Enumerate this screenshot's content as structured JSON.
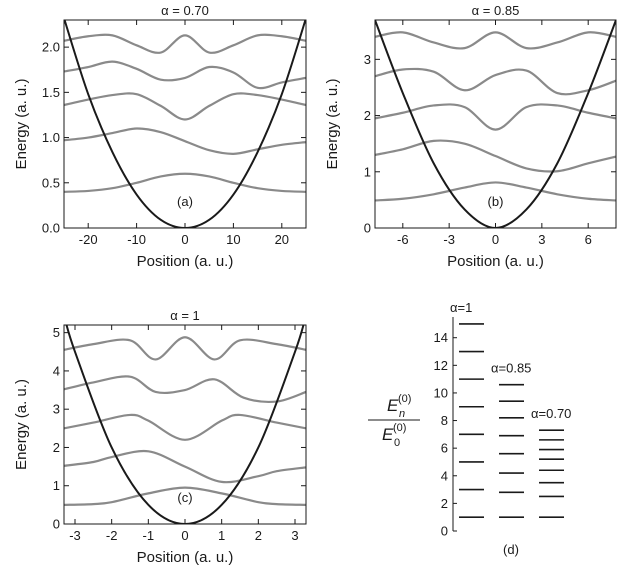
{
  "chart_data": [
    {
      "type": "line",
      "title": "α = 0.70",
      "xlabel": "Position (a. u.)",
      "ylabel": "Energy (a. u.)",
      "panel_label": "(a)",
      "xlim": [
        -25,
        25
      ],
      "ylim": [
        0,
        2.3
      ],
      "xticks": [
        -20,
        -10,
        0,
        10,
        20
      ],
      "yticks": [
        0.0,
        0.5,
        1.0,
        1.5,
        2.0
      ],
      "ytick_labels": [
        "0.0",
        "0.5",
        "1.0",
        "1.5",
        "2.0"
      ],
      "potential": {
        "color": "#1a1a1a",
        "points": [
          [
            -25,
            2.32
          ],
          [
            -20,
            1.48
          ],
          [
            -15,
            0.84
          ],
          [
            -10,
            0.37
          ],
          [
            -5,
            0.09
          ],
          [
            0,
            0.0
          ],
          [
            5,
            0.09
          ],
          [
            10,
            0.37
          ],
          [
            15,
            0.84
          ],
          [
            20,
            1.48
          ],
          [
            25,
            2.32
          ]
        ]
      },
      "wavefunctions": [
        {
          "energy": 0.4,
          "points": [
            [
              -25,
              0.4
            ],
            [
              -20,
              0.41
            ],
            [
              -15,
              0.44
            ],
            [
              -10,
              0.5
            ],
            [
              -5,
              0.57
            ],
            [
              0,
              0.6
            ],
            [
              5,
              0.57
            ],
            [
              10,
              0.5
            ],
            [
              15,
              0.44
            ],
            [
              20,
              0.41
            ],
            [
              25,
              0.4
            ]
          ]
        },
        {
          "energy": 0.96,
          "points": [
            [
              -25,
              0.97
            ],
            [
              -20,
              1.0
            ],
            [
              -15,
              1.05
            ],
            [
              -10,
              1.1
            ],
            [
              -5,
              1.06
            ],
            [
              0,
              0.96
            ],
            [
              5,
              0.86
            ],
            [
              10,
              0.82
            ],
            [
              15,
              0.87
            ],
            [
              20,
              0.92
            ],
            [
              25,
              0.95
            ]
          ]
        },
        {
          "energy": 1.35,
          "points": [
            [
              -25,
              1.36
            ],
            [
              -20,
              1.42
            ],
            [
              -15,
              1.47
            ],
            [
              -10,
              1.48
            ],
            [
              -5,
              1.35
            ],
            [
              0,
              1.2
            ],
            [
              5,
              1.35
            ],
            [
              10,
              1.48
            ],
            [
              15,
              1.47
            ],
            [
              20,
              1.42
            ],
            [
              25,
              1.36
            ]
          ]
        },
        {
          "energy": 1.66,
          "points": [
            [
              -25,
              1.73
            ],
            [
              -20,
              1.78
            ],
            [
              -15,
              1.84
            ],
            [
              -10,
              1.76
            ],
            [
              -5,
              1.64
            ],
            [
              0,
              1.66
            ],
            [
              5,
              1.78
            ],
            [
              10,
              1.72
            ],
            [
              15,
              1.55
            ],
            [
              20,
              1.61
            ],
            [
              25,
              1.66
            ]
          ]
        },
        {
          "energy": 2.03,
          "points": [
            [
              -25,
              2.07
            ],
            [
              -20,
              2.12
            ],
            [
              -15,
              2.13
            ],
            [
              -10,
              2.02
            ],
            [
              -5,
              1.94
            ],
            [
              0,
              2.13
            ],
            [
              5,
              1.94
            ],
            [
              10,
              2.02
            ],
            [
              15,
              2.13
            ],
            [
              20,
              2.12
            ],
            [
              25,
              2.07
            ]
          ]
        }
      ]
    },
    {
      "type": "line",
      "title": "α = 0.85",
      "xlabel": "Position (a. u.)",
      "ylabel": "Energy (a. u.)",
      "panel_label": "(b)",
      "xlim": [
        -7.8,
        7.8
      ],
      "ylim": [
        0,
        3.7
      ],
      "xticks": [
        -6,
        -3,
        0,
        3,
        6
      ],
      "yticks": [
        0,
        1,
        2,
        3
      ],
      "ytick_labels": [
        "0",
        "1",
        "2",
        "3"
      ],
      "potential": {
        "color": "#1a1a1a",
        "points": [
          [
            -7.8,
            3.7
          ],
          [
            -6,
            2.4
          ],
          [
            -4,
            1.15
          ],
          [
            -2,
            0.33
          ],
          [
            0,
            0.0
          ],
          [
            2,
            0.33
          ],
          [
            4,
            1.15
          ],
          [
            6,
            2.4
          ],
          [
            7.8,
            3.7
          ]
        ]
      },
      "wavefunctions": [
        {
          "energy": 0.55,
          "points": [
            [
              -7.8,
              0.49
            ],
            [
              -6,
              0.52
            ],
            [
              -4,
              0.6
            ],
            [
              -2,
              0.72
            ],
            [
              0,
              0.81
            ],
            [
              2,
              0.72
            ],
            [
              4,
              0.6
            ],
            [
              6,
              0.52
            ],
            [
              7.8,
              0.49
            ]
          ]
        },
        {
          "energy": 1.28,
          "points": [
            [
              -7.8,
              1.3
            ],
            [
              -6,
              1.4
            ],
            [
              -4,
              1.55
            ],
            [
              -2,
              1.5
            ],
            [
              0,
              1.28
            ],
            [
              2,
              1.06
            ],
            [
              4,
              1.01
            ],
            [
              6,
              1.15
            ],
            [
              7.8,
              1.27
            ]
          ]
        },
        {
          "energy": 2.05,
          "points": [
            [
              -7.8,
              1.95
            ],
            [
              -6,
              2.05
            ],
            [
              -4,
              2.18
            ],
            [
              -2,
              2.15
            ],
            [
              0,
              1.75
            ],
            [
              2,
              2.15
            ],
            [
              4,
              2.18
            ],
            [
              6,
              2.05
            ],
            [
              7.8,
              1.95
            ]
          ]
        },
        {
          "energy": 2.7,
          "points": [
            [
              -7.8,
              2.7
            ],
            [
              -6,
              2.82
            ],
            [
              -4,
              2.78
            ],
            [
              -2,
              2.45
            ],
            [
              0,
              2.72
            ],
            [
              2,
              2.8
            ],
            [
              4,
              2.4
            ],
            [
              6,
              2.45
            ],
            [
              7.8,
              2.62
            ]
          ]
        },
        {
          "energy": 3.35,
          "points": [
            [
              -7.8,
              3.4
            ],
            [
              -6,
              3.48
            ],
            [
              -4,
              3.3
            ],
            [
              -2,
              3.2
            ],
            [
              0,
              3.48
            ],
            [
              2,
              3.2
            ],
            [
              4,
              3.3
            ],
            [
              6,
              3.48
            ],
            [
              7.8,
              3.4
            ]
          ]
        }
      ]
    },
    {
      "type": "line",
      "title": "α = 1",
      "xlabel": "Position (a. u.)",
      "ylabel": "Energy (a. u.)",
      "panel_label": "(c)",
      "xlim": [
        -3.3,
        3.3
      ],
      "ylim": [
        0,
        5.2
      ],
      "xticks": [
        -3,
        -2,
        -1,
        0,
        1,
        2,
        3
      ],
      "yticks": [
        0,
        1,
        2,
        3,
        4,
        5
      ],
      "ytick_labels": [
        "0",
        "1",
        "2",
        "3",
        "4",
        "5"
      ],
      "potential": {
        "color": "#1a1a1a",
        "points": [
          [
            -3.3,
            5.45
          ],
          [
            -3,
            4.5
          ],
          [
            -2,
            2.0
          ],
          [
            -1,
            0.5
          ],
          [
            0,
            0.0
          ],
          [
            1,
            0.5
          ],
          [
            2,
            2.0
          ],
          [
            3,
            4.5
          ],
          [
            3.3,
            5.45
          ]
        ]
      },
      "wavefunctions": [
        {
          "energy": 0.5,
          "points": [
            [
              -3.3,
              0.5
            ],
            [
              -2.5,
              0.52
            ],
            [
              -2,
              0.57
            ],
            [
              -1,
              0.8
            ],
            [
              0,
              0.95
            ],
            [
              1,
              0.8
            ],
            [
              2,
              0.57
            ],
            [
              2.5,
              0.52
            ],
            [
              3.3,
              0.5
            ]
          ]
        },
        {
          "energy": 1.5,
          "points": [
            [
              -3.3,
              1.52
            ],
            [
              -2.5,
              1.62
            ],
            [
              -2,
              1.75
            ],
            [
              -1,
              1.9
            ],
            [
              0,
              1.5
            ],
            [
              1,
              1.1
            ],
            [
              2,
              1.25
            ],
            [
              2.5,
              1.38
            ],
            [
              3.3,
              1.48
            ]
          ]
        },
        {
          "energy": 2.5,
          "points": [
            [
              -3.3,
              2.5
            ],
            [
              -2.5,
              2.65
            ],
            [
              -1.5,
              2.85
            ],
            [
              -1,
              2.7
            ],
            [
              0,
              2.2
            ],
            [
              1,
              2.7
            ],
            [
              1.5,
              2.85
            ],
            [
              2.5,
              2.65
            ],
            [
              3.3,
              2.5
            ]
          ]
        },
        {
          "energy": 3.5,
          "points": [
            [
              -3.3,
              3.52
            ],
            [
              -2.5,
              3.7
            ],
            [
              -1.5,
              3.85
            ],
            [
              -0.8,
              3.45
            ],
            [
              0,
              3.5
            ],
            [
              0.8,
              3.78
            ],
            [
              1.6,
              3.3
            ],
            [
              2.5,
              3.2
            ],
            [
              3.3,
              3.45
            ]
          ]
        },
        {
          "energy": 4.5,
          "points": [
            [
              -3.3,
              4.55
            ],
            [
              -2.5,
              4.7
            ],
            [
              -1.5,
              4.8
            ],
            [
              -0.8,
              4.3
            ],
            [
              0,
              4.88
            ],
            [
              0.8,
              4.3
            ],
            [
              1.5,
              4.8
            ],
            [
              2.5,
              4.7
            ],
            [
              3.3,
              4.55
            ]
          ]
        }
      ]
    },
    {
      "type": "bar",
      "title": "",
      "panel_label": "(d)",
      "ylabel_numerator": "E",
      "ylabel_subscript": "n",
      "ylabel_superscript": "(0)",
      "ylabel_denominator": "E",
      "ylabel_den_subscript": "0",
      "ylabel_den_superscript": "(0)",
      "ylim": [
        0,
        15.5
      ],
      "yticks": [
        0,
        2,
        4,
        6,
        8,
        10,
        12,
        14
      ],
      "ytick_labels": [
        "0",
        "2",
        "4",
        "6",
        "8",
        "10",
        "12",
        "14"
      ],
      "series": [
        {
          "name": "α=1",
          "levels": [
            1,
            3,
            5,
            7,
            9,
            11,
            13,
            15
          ]
        },
        {
          "name": "α=0.85",
          "levels": [
            1,
            2.8,
            4.2,
            5.6,
            6.9,
            8.2,
            9.4,
            10.6
          ]
        },
        {
          "name": "α=0.70",
          "levels": [
            1,
            2.5,
            3.5,
            4.4,
            5.2,
            5.9,
            6.6,
            7.3
          ]
        }
      ]
    }
  ],
  "colors": {
    "potential": "#1a1a1a",
    "wavefunction": "#8a8a8a",
    "axis": "#1a1a1a"
  }
}
